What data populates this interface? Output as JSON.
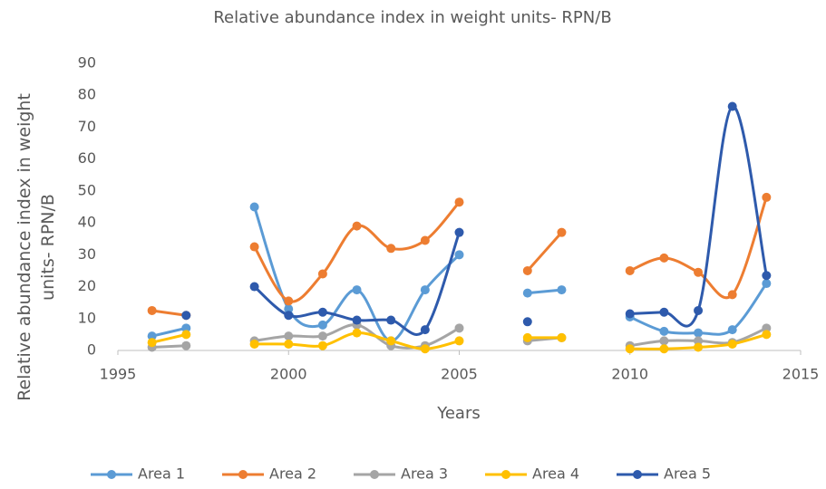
{
  "chart_data": {
    "type": "line",
    "title": "Relative abundance index in weight units- RPN/B",
    "x_label": "Years",
    "y_label": "Relative abundance index in weight units- RPN/B",
    "x": [
      1996,
      1997,
      1998,
      1999,
      2000,
      2001,
      2002,
      2003,
      2004,
      2005,
      2006,
      2007,
      2008,
      2009,
      2010,
      2011,
      2012,
      2013,
      2014
    ],
    "series": [
      {
        "name": "Area 1",
        "color": "#5B9BD5",
        "values": [
          4.5,
          7,
          null,
          45,
          13,
          8,
          19,
          3,
          19,
          30,
          null,
          18,
          19,
          null,
          10.5,
          6,
          5.5,
          6.5,
          21
        ]
      },
      {
        "name": "Area 2",
        "color": "#ED7D31",
        "values": [
          12.5,
          11,
          null,
          32.5,
          15.5,
          24,
          39,
          32,
          34.5,
          46.5,
          null,
          25,
          37,
          null,
          25,
          29,
          24.5,
          17.5,
          48
        ]
      },
      {
        "name": "Area 3",
        "color": "#A5A5A5",
        "values": [
          1,
          1.5,
          null,
          3,
          4.5,
          4.5,
          8,
          1.5,
          1.5,
          7,
          null,
          3,
          4,
          null,
          1.5,
          3,
          3,
          2.5,
          7
        ]
      },
      {
        "name": "Area 4",
        "color": "#FFC000",
        "values": [
          2.5,
          5,
          null,
          2,
          2,
          1.5,
          5.5,
          3,
          0.5,
          3,
          null,
          4,
          4,
          null,
          0.5,
          0.5,
          1,
          2,
          5
        ]
      },
      {
        "name": "Area 5",
        "color": "#2E5AAC",
        "values": [
          null,
          11,
          null,
          20,
          11,
          12,
          9.5,
          9.5,
          6.5,
          37,
          null,
          9,
          null,
          null,
          11.5,
          12,
          12.5,
          76.5,
          23.5
        ]
      }
    ],
    "xlim": [
      1995,
      2015
    ],
    "xticks": [
      1995,
      2000,
      2005,
      2010,
      2015
    ],
    "ylim": [
      0,
      90
    ],
    "yticks": [
      0,
      10,
      20,
      30,
      40,
      50,
      60,
      70,
      80,
      90
    ],
    "grid": false,
    "smooth": true,
    "legend": "bottom"
  }
}
